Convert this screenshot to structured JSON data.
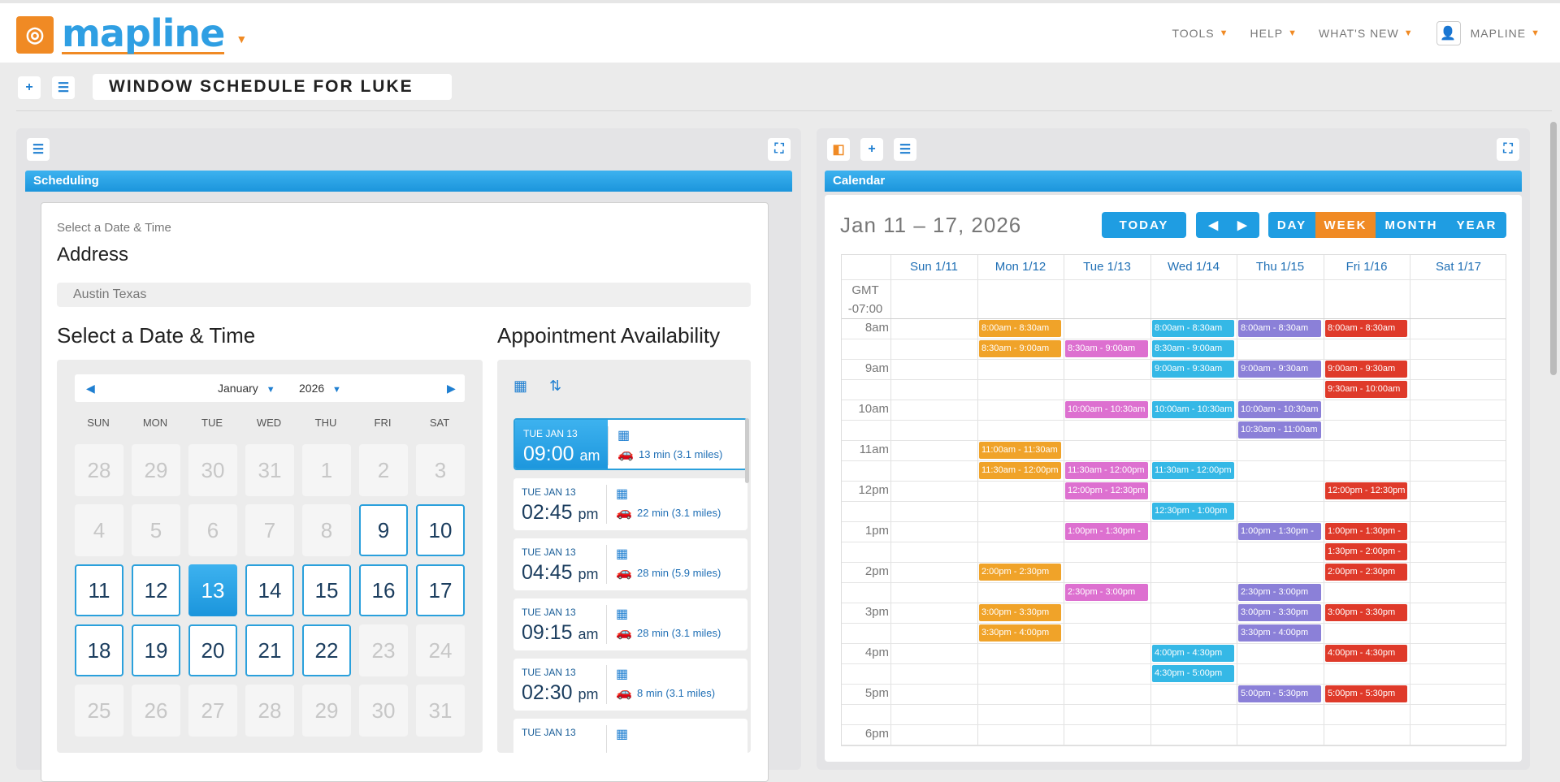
{
  "header": {
    "logo_text": "mapline",
    "nav": [
      "TOOLS",
      "HELP",
      "WHAT'S NEW"
    ],
    "user": "MAPLINE"
  },
  "page": {
    "title": "WINDOW SCHEDULE FOR LUKE"
  },
  "scheduling": {
    "panel_title": "Scheduling",
    "step_label": "Select a Date & Time",
    "address_title": "Address",
    "address_value": "Austin Texas",
    "date_title": "Select a Date & Time",
    "avail_title": "Appointment Availability",
    "month": "January",
    "year": "2026",
    "weekdays": [
      "SUN",
      "MON",
      "TUE",
      "WED",
      "THU",
      "FRI",
      "SAT"
    ],
    "days": [
      {
        "n": "28",
        "s": "dis"
      },
      {
        "n": "29",
        "s": "dis"
      },
      {
        "n": "30",
        "s": "dis"
      },
      {
        "n": "31",
        "s": "dis"
      },
      {
        "n": "1",
        "s": "dis"
      },
      {
        "n": "2",
        "s": "dis"
      },
      {
        "n": "3",
        "s": "dis"
      },
      {
        "n": "4",
        "s": "dis"
      },
      {
        "n": "5",
        "s": "dis"
      },
      {
        "n": "6",
        "s": "dis"
      },
      {
        "n": "7",
        "s": "dis"
      },
      {
        "n": "8",
        "s": "dis"
      },
      {
        "n": "9",
        "s": "av"
      },
      {
        "n": "10",
        "s": "av"
      },
      {
        "n": "11",
        "s": "av"
      },
      {
        "n": "12",
        "s": "av"
      },
      {
        "n": "13",
        "s": "sel"
      },
      {
        "n": "14",
        "s": "av"
      },
      {
        "n": "15",
        "s": "av"
      },
      {
        "n": "16",
        "s": "av"
      },
      {
        "n": "17",
        "s": "av"
      },
      {
        "n": "18",
        "s": "av"
      },
      {
        "n": "19",
        "s": "av"
      },
      {
        "n": "20",
        "s": "av"
      },
      {
        "n": "21",
        "s": "av"
      },
      {
        "n": "22",
        "s": "av"
      },
      {
        "n": "23",
        "s": "dis"
      },
      {
        "n": "24",
        "s": "dis"
      },
      {
        "n": "25",
        "s": "dis"
      },
      {
        "n": "26",
        "s": "dis"
      },
      {
        "n": "27",
        "s": "dis"
      },
      {
        "n": "28",
        "s": "dis"
      },
      {
        "n": "29",
        "s": "dis"
      },
      {
        "n": "30",
        "s": "dis"
      },
      {
        "n": "31",
        "s": "dis"
      }
    ],
    "slots": [
      {
        "date": "TUE JAN 13",
        "time": "09:00",
        "ampm": "am",
        "drive": "13 min (3.1 miles)",
        "selected": true
      },
      {
        "date": "TUE JAN 13",
        "time": "02:45",
        "ampm": "pm",
        "drive": "22 min (3.1 miles)",
        "selected": false
      },
      {
        "date": "TUE JAN 13",
        "time": "04:45",
        "ampm": "pm",
        "drive": "28 min (5.9 miles)",
        "selected": false
      },
      {
        "date": "TUE JAN 13",
        "time": "09:15",
        "ampm": "am",
        "drive": "28 min (3.1 miles)",
        "selected": false
      },
      {
        "date": "TUE JAN 13",
        "time": "02:30",
        "ampm": "pm",
        "drive": "8 min (3.1 miles)",
        "selected": false
      },
      {
        "date": "TUE JAN 13",
        "time": "",
        "ampm": "",
        "drive": "",
        "selected": false
      }
    ]
  },
  "calendar": {
    "panel_title": "Calendar",
    "range": "Jan 11 – 17, 2026",
    "buttons": {
      "today": "TODAY",
      "day": "DAY",
      "week": "WEEK",
      "month": "MONTH",
      "year": "YEAR"
    },
    "tz": [
      "GMT",
      "-07:00"
    ],
    "days": [
      "Sun 1/11",
      "Mon 1/12",
      "Tue 1/13",
      "Wed 1/14",
      "Thu 1/15",
      "Fri 1/16",
      "Sat 1/17"
    ],
    "hours": [
      "8am",
      "9am",
      "10am",
      "11am",
      "12pm",
      "1pm",
      "2pm",
      "3pm",
      "4pm",
      "5pm",
      "6pm"
    ],
    "colors": {
      "mon": "#f0a329",
      "tue": "#dd70d0",
      "wed": "#35b8e6",
      "thu": "#8b80d8",
      "fri": "#df3a2a",
      "accent": "#f08a24",
      "primary": "#1f9de2"
    },
    "events": [
      {
        "d": 1,
        "s": 0,
        "label": "8:00am - 8:30am"
      },
      {
        "d": 1,
        "s": 1,
        "label": "8:30am - 9:00am"
      },
      {
        "d": 1,
        "s": 6,
        "label": "11:00am - 11:30am"
      },
      {
        "d": 1,
        "s": 7,
        "label": "11:30am - 12:00pm"
      },
      {
        "d": 1,
        "s": 12,
        "label": "2:00pm - 2:30pm"
      },
      {
        "d": 1,
        "s": 14,
        "label": "3:00pm - 3:30pm"
      },
      {
        "d": 1,
        "s": 15,
        "label": "3:30pm - 4:00pm"
      },
      {
        "d": 2,
        "s": 1,
        "label": "8:30am - 9:00am"
      },
      {
        "d": 2,
        "s": 4,
        "label": "10:00am - 10:30am"
      },
      {
        "d": 2,
        "s": 7,
        "label": "11:30am - 12:00pm"
      },
      {
        "d": 2,
        "s": 8,
        "label": "12:00pm - 12:30pm"
      },
      {
        "d": 2,
        "s": 10,
        "label": "1:00pm - 1:30pm -"
      },
      {
        "d": 2,
        "s": 13,
        "label": "2:30pm - 3:00pm"
      },
      {
        "d": 3,
        "s": 0,
        "label": "8:00am - 8:30am"
      },
      {
        "d": 3,
        "s": 1,
        "label": "8:30am - 9:00am"
      },
      {
        "d": 3,
        "s": 2,
        "label": "9:00am - 9:30am"
      },
      {
        "d": 3,
        "s": 4,
        "label": "10:00am - 10:30am"
      },
      {
        "d": 3,
        "s": 7,
        "label": "11:30am - 12:00pm"
      },
      {
        "d": 3,
        "s": 9,
        "label": "12:30pm - 1:00pm"
      },
      {
        "d": 3,
        "s": 16,
        "label": "4:00pm - 4:30pm"
      },
      {
        "d": 3,
        "s": 17,
        "label": "4:30pm - 5:00pm"
      },
      {
        "d": 4,
        "s": 0,
        "label": "8:00am - 8:30am"
      },
      {
        "d": 4,
        "s": 2,
        "label": "9:00am - 9:30am"
      },
      {
        "d": 4,
        "s": 4,
        "label": "10:00am - 10:30am"
      },
      {
        "d": 4,
        "s": 5,
        "label": "10:30am - 11:00am"
      },
      {
        "d": 4,
        "s": 10,
        "label": "1:00pm - 1:30pm -"
      },
      {
        "d": 4,
        "s": 13,
        "label": "2:30pm - 3:00pm"
      },
      {
        "d": 4,
        "s": 14,
        "label": "3:00pm - 3:30pm"
      },
      {
        "d": 4,
        "s": 15,
        "label": "3:30pm - 4:00pm"
      },
      {
        "d": 4,
        "s": 18,
        "label": "5:00pm - 5:30pm"
      },
      {
        "d": 5,
        "s": 0,
        "label": "8:00am - 8:30am"
      },
      {
        "d": 5,
        "s": 2,
        "label": "9:00am - 9:30am"
      },
      {
        "d": 5,
        "s": 3,
        "label": "9:30am - 10:00am"
      },
      {
        "d": 5,
        "s": 8,
        "label": "12:00pm - 12:30pm"
      },
      {
        "d": 5,
        "s": 10,
        "label": "1:00pm - 1:30pm -"
      },
      {
        "d": 5,
        "s": 11,
        "label": "1:30pm - 2:00pm -"
      },
      {
        "d": 5,
        "s": 12,
        "label": "2:00pm - 2:30pm"
      },
      {
        "d": 5,
        "s": 14,
        "label": "3:00pm - 3:30pm"
      },
      {
        "d": 5,
        "s": 16,
        "label": "4:00pm - 4:30pm"
      },
      {
        "d": 5,
        "s": 18,
        "label": "5:00pm - 5:30pm"
      }
    ]
  }
}
